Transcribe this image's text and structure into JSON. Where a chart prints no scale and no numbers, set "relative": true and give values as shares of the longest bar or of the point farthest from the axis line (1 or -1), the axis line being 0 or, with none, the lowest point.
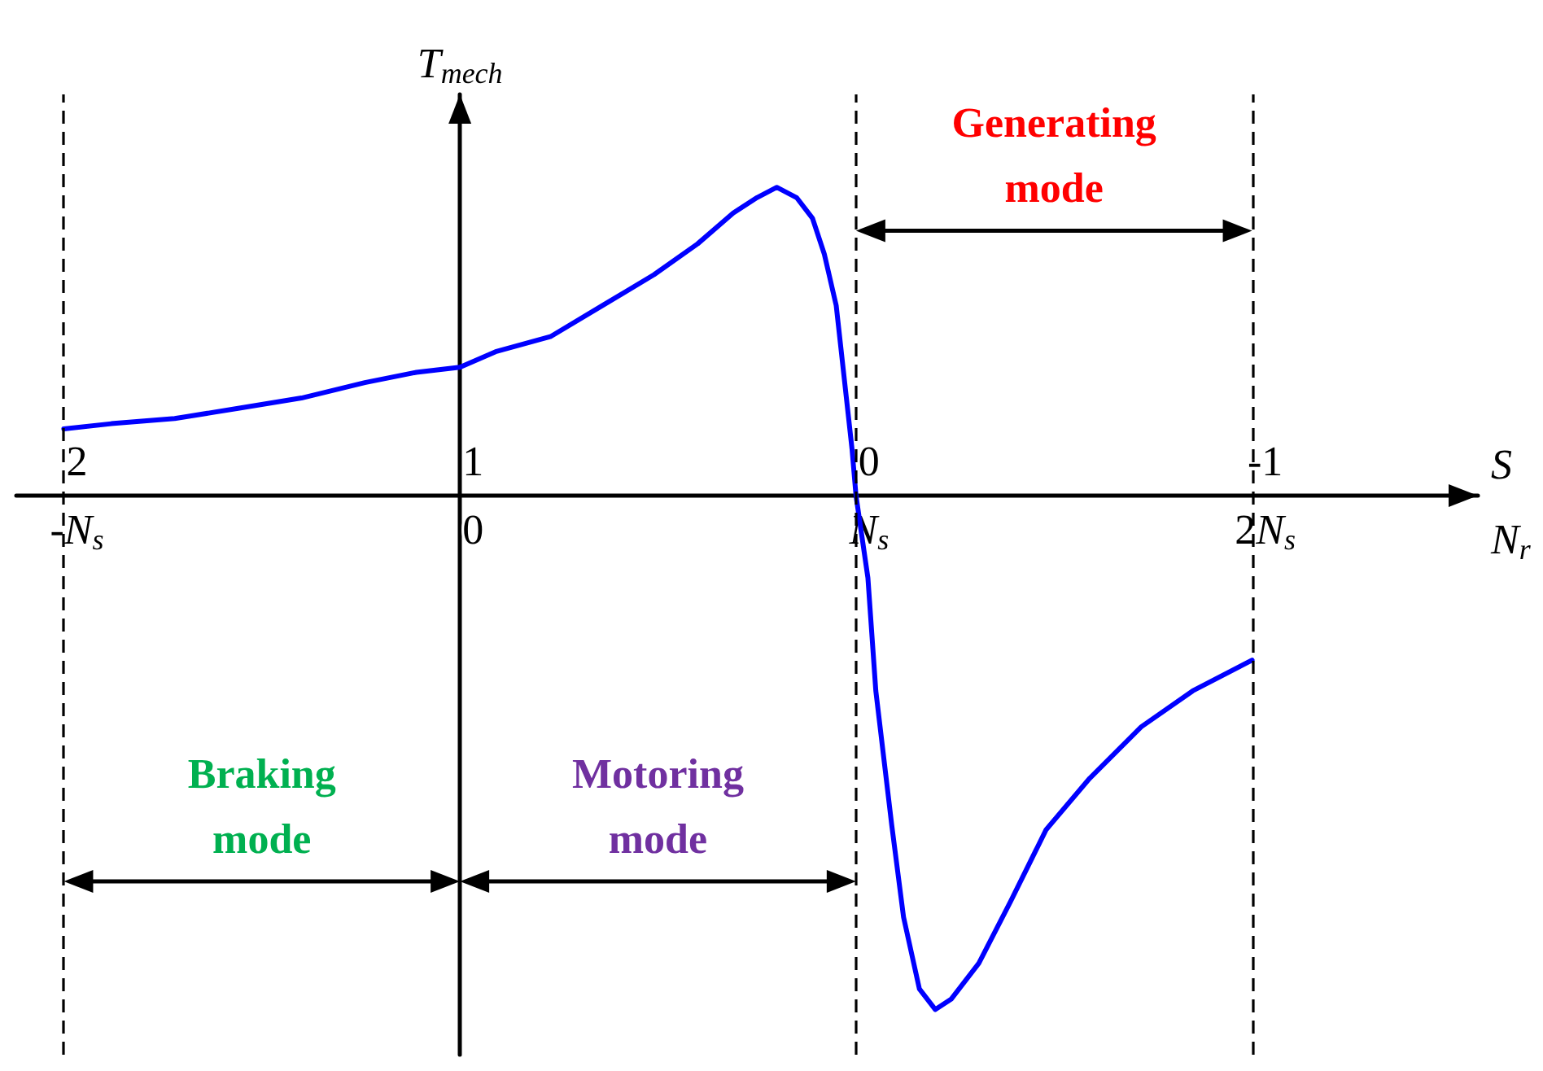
{
  "chart_data": {
    "type": "line",
    "relative": true,
    "ylabel": "T$_{mech}$",
    "xlabel": "N$_{r}$",
    "x2label": "S",
    "x": [
      -1,
      -0.88,
      -0.72,
      -0.56,
      -0.4,
      -0.24,
      -0.11,
      0,
      0.09,
      0.23,
      0.36,
      0.49,
      0.6,
      0.69,
      0.75,
      0.8,
      0.85,
      0.89,
      0.92,
      0.95,
      0.97,
      0.99,
      1,
      1.03,
      1.05,
      1.09,
      1.12,
      1.16,
      1.2,
      1.24,
      1.31,
      1.39,
      1.48,
      1.59,
      1.72,
      1.85,
      2
    ],
    "series": [
      {
        "color": "#0000ff",
        "values": [
          0.13,
          0.14,
          0.15,
          0.17,
          0.19,
          0.22,
          0.24,
          0.25,
          0.28,
          0.31,
          0.37,
          0.43,
          0.49,
          0.55,
          0.58,
          0.6,
          0.58,
          0.54,
          0.47,
          0.37,
          0.23,
          0.09,
          0,
          -0.16,
          -0.38,
          -0.64,
          -0.82,
          -0.96,
          -1,
          -0.98,
          -0.91,
          -0.79,
          -0.65,
          -0.55,
          -0.45,
          -0.38,
          -0.32
        ]
      }
    ],
    "xlim": [
      -1.12,
      2.57
    ],
    "xticks": [
      {
        "value": -1,
        "label": "-N$_{s}$"
      },
      0,
      {
        "value": 1,
        "label": "N$_{s}$"
      },
      {
        "value": 2,
        "label": "2N$_{s}$"
      }
    ],
    "x2lim": [
      2.12,
      -1.57
    ],
    "x2ticks": [
      2,
      1,
      0,
      -1
    ],
    "ref_lines": [
      {
        "axis": "x",
        "value": -1,
        "line_style": "dashed"
      },
      {
        "axis": "x",
        "value": 1,
        "line_style": "dashed"
      },
      {
        "axis": "x",
        "value": 2,
        "line_style": "dashed"
      }
    ],
    "annotations": [
      "Braking mode",
      "Motoring mode",
      "Generating mode"
    ]
  }
}
